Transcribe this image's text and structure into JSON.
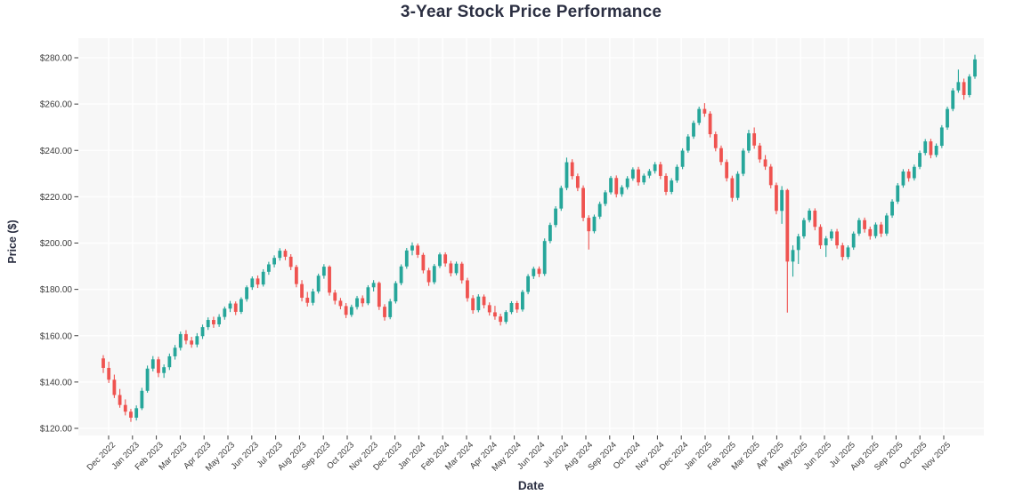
{
  "title": "3-Year Stock Price Performance",
  "x_axis": {
    "label": "Date",
    "ticks": [
      "Dec 2022",
      "Jan 2023",
      "Feb 2023",
      "Mar 2023",
      "Apr 2023",
      "May 2023",
      "Jun 2023",
      "Jul 2023",
      "Aug 2023",
      "Sep 2023",
      "Oct 2023",
      "Nov 2023",
      "Dec 2023",
      "Jan 2024",
      "Feb 2024",
      "Mar 2024",
      "Apr 2024",
      "May 2024",
      "Jun 2024",
      "Jul 2024",
      "Aug 2024",
      "Sep 2024",
      "Oct 2024",
      "Nov 2024",
      "Dec 2024",
      "Jan 2025",
      "Feb 2025",
      "Mar 2025",
      "Apr 2025",
      "May 2025",
      "Jun 2025",
      "Jul 2025",
      "Aug 2025",
      "Sep 2025",
      "Oct 2025",
      "Nov 2025"
    ]
  },
  "y_axis": {
    "label": "Price ($)",
    "tick_labels": [
      "$120.00",
      "$140.00",
      "$160.00",
      "$180.00",
      "$200.00",
      "$220.00",
      "$240.00",
      "$260.00",
      "$280.00"
    ],
    "tick_values": [
      120,
      140,
      160,
      180,
      200,
      220,
      240,
      260,
      280
    ]
  },
  "colors": {
    "up": "#26a69a",
    "down": "#ef5350",
    "plot_background": "#f7f7f7",
    "grid": "#ffffff",
    "tick_text": "#3a3a3a",
    "title_text": "#2b2f42"
  },
  "chart_data": {
    "type": "candlestick",
    "title": "3-Year Stock Price Performance",
    "xlabel": "Date",
    "ylabel": "Price ($)",
    "x_range_labels": [
      "Dec 2022",
      "Nov 2025"
    ],
    "ylim": [
      117,
      288
    ],
    "grid": true,
    "legend": false,
    "frequency": "weekly",
    "n_points": 159,
    "ohlc_format": [
      "open",
      "high",
      "low",
      "close"
    ],
    "ohlc": [
      [
        150.2,
        151.6,
        143.9,
        146.1
      ],
      [
        146.1,
        148.8,
        139.6,
        141.0
      ],
      [
        141.0,
        143.2,
        133.1,
        134.4
      ],
      [
        134.4,
        137.0,
        128.9,
        130.1
      ],
      [
        130.1,
        132.5,
        125.6,
        127.2
      ],
      [
        127.2,
        128.4,
        122.8,
        124.6
      ],
      [
        124.6,
        129.9,
        123.4,
        128.7
      ],
      [
        128.7,
        137.5,
        127.9,
        136.2
      ],
      [
        136.2,
        147.1,
        135.4,
        145.8
      ],
      [
        145.8,
        151.2,
        144.6,
        149.8
      ],
      [
        149.8,
        150.9,
        142.1,
        143.9
      ],
      [
        143.9,
        147.6,
        141.8,
        146.4
      ],
      [
        146.4,
        152.3,
        145.2,
        151.1
      ],
      [
        151.1,
        156.0,
        149.7,
        154.8
      ],
      [
        154.8,
        161.8,
        153.6,
        160.7
      ],
      [
        160.7,
        162.4,
        156.3,
        157.9
      ],
      [
        157.9,
        159.5,
        154.8,
        156.2
      ],
      [
        156.2,
        161.1,
        155.0,
        159.8
      ],
      [
        159.8,
        164.8,
        158.6,
        163.7
      ],
      [
        163.7,
        167.9,
        162.5,
        166.8
      ],
      [
        166.8,
        168.2,
        163.4,
        164.9
      ],
      [
        164.9,
        169.3,
        163.8,
        168.1
      ],
      [
        168.1,
        172.6,
        166.9,
        171.7
      ],
      [
        171.7,
        175.0,
        170.2,
        173.9
      ],
      [
        173.9,
        174.8,
        168.9,
        170.3
      ],
      [
        170.3,
        176.6,
        169.4,
        175.8
      ],
      [
        175.8,
        181.7,
        174.7,
        180.9
      ],
      [
        180.9,
        185.6,
        179.8,
        184.7
      ],
      [
        184.7,
        186.0,
        180.6,
        182.1
      ],
      [
        182.1,
        188.7,
        181.2,
        187.6
      ],
      [
        187.6,
        191.9,
        186.3,
        190.8
      ],
      [
        190.8,
        194.7,
        189.5,
        193.6
      ],
      [
        193.6,
        197.8,
        192.4,
        196.7
      ],
      [
        196.7,
        197.5,
        192.6,
        194.1
      ],
      [
        194.1,
        195.2,
        188.3,
        189.7
      ],
      [
        189.7,
        190.6,
        180.9,
        182.3
      ],
      [
        182.3,
        184.0,
        174.8,
        176.4
      ],
      [
        176.4,
        178.9,
        172.6,
        174.2
      ],
      [
        174.2,
        180.3,
        173.1,
        179.1
      ],
      [
        179.1,
        186.8,
        178.2,
        185.9
      ],
      [
        185.9,
        190.9,
        184.6,
        189.8
      ],
      [
        189.8,
        190.4,
        177.3,
        178.6
      ],
      [
        178.6,
        179.8,
        173.5,
        175.1
      ],
      [
        175.1,
        176.3,
        171.4,
        172.8
      ],
      [
        172.8,
        174.1,
        167.6,
        169.0
      ],
      [
        169.0,
        173.4,
        168.1,
        172.4
      ],
      [
        172.4,
        177.2,
        171.3,
        176.2
      ],
      [
        176.2,
        177.4,
        172.5,
        174.0
      ],
      [
        174.0,
        181.8,
        173.2,
        180.9
      ],
      [
        180.9,
        184.0,
        179.1,
        182.8
      ],
      [
        182.8,
        183.4,
        171.1,
        172.5
      ],
      [
        172.5,
        173.6,
        166.5,
        168.0
      ],
      [
        168.0,
        175.9,
        167.1,
        174.8
      ],
      [
        174.8,
        183.6,
        173.9,
        182.7
      ],
      [
        182.7,
        190.8,
        181.8,
        189.9
      ],
      [
        189.9,
        197.9,
        188.9,
        196.8
      ],
      [
        196.8,
        200.3,
        194.7,
        198.9
      ],
      [
        198.9,
        199.8,
        193.6,
        194.9
      ],
      [
        194.9,
        195.8,
        186.9,
        188.2
      ],
      [
        188.2,
        189.3,
        181.5,
        183.1
      ],
      [
        183.1,
        191.0,
        182.2,
        190.1
      ],
      [
        190.1,
        195.9,
        189.2,
        195.1
      ],
      [
        195.1,
        196.0,
        189.8,
        191.2
      ],
      [
        191.2,
        192.3,
        185.6,
        187.0
      ],
      [
        187.0,
        192.0,
        186.1,
        191.1
      ],
      [
        191.1,
        191.9,
        182.5,
        183.9
      ],
      [
        183.9,
        185.0,
        174.7,
        176.2
      ],
      [
        176.2,
        177.5,
        169.5,
        171.0
      ],
      [
        171.0,
        177.9,
        170.1,
        176.9
      ],
      [
        176.9,
        177.8,
        171.8,
        173.2
      ],
      [
        173.2,
        174.4,
        168.7,
        170.1
      ],
      [
        170.1,
        172.9,
        166.9,
        168.3
      ],
      [
        168.3,
        169.5,
        164.4,
        166.0
      ],
      [
        166.0,
        171.0,
        165.1,
        170.2
      ],
      [
        170.2,
        174.9,
        169.3,
        174.1
      ],
      [
        174.1,
        175.0,
        169.9,
        171.3
      ],
      [
        171.3,
        179.8,
        170.4,
        178.9
      ],
      [
        178.9,
        186.6,
        177.9,
        185.7
      ],
      [
        185.7,
        189.8,
        184.5,
        188.9
      ],
      [
        188.9,
        189.9,
        185.3,
        186.7
      ],
      [
        186.7,
        202.0,
        185.8,
        200.9
      ],
      [
        200.9,
        208.8,
        199.9,
        207.8
      ],
      [
        207.8,
        215.9,
        206.8,
        214.9
      ],
      [
        214.9,
        224.8,
        213.9,
        223.8
      ],
      [
        223.8,
        236.9,
        222.8,
        234.9
      ],
      [
        234.9,
        236.2,
        227.5,
        228.9
      ],
      [
        228.9,
        230.0,
        222.4,
        223.8
      ],
      [
        223.8,
        224.9,
        209.4,
        210.9
      ],
      [
        210.9,
        212.0,
        197.2,
        205.1
      ],
      [
        205.1,
        212.3,
        204.2,
        211.4
      ],
      [
        211.4,
        217.9,
        210.4,
        216.9
      ],
      [
        216.9,
        222.8,
        215.9,
        221.9
      ],
      [
        221.9,
        229.0,
        221.0,
        228.1
      ],
      [
        228.1,
        229.2,
        219.7,
        221.1
      ],
      [
        221.1,
        225.0,
        220.0,
        224.1
      ],
      [
        224.1,
        228.9,
        223.1,
        227.9
      ],
      [
        227.9,
        232.7,
        226.9,
        231.8
      ],
      [
        231.8,
        232.9,
        224.8,
        226.2
      ],
      [
        226.2,
        230.0,
        225.2,
        229.1
      ],
      [
        229.1,
        232.0,
        228.0,
        231.1
      ],
      [
        231.1,
        235.0,
        230.0,
        234.0
      ],
      [
        234.0,
        235.1,
        227.6,
        229.0
      ],
      [
        229.0,
        230.1,
        220.7,
        222.1
      ],
      [
        222.1,
        228.0,
        221.1,
        227.0
      ],
      [
        227.0,
        233.9,
        226.0,
        232.9
      ],
      [
        232.9,
        240.9,
        231.9,
        239.9
      ],
      [
        239.9,
        247.0,
        239.0,
        246.0
      ],
      [
        246.0,
        252.9,
        245.0,
        251.9
      ],
      [
        251.9,
        258.9,
        250.9,
        257.9
      ],
      [
        257.9,
        260.4,
        254.5,
        255.9
      ],
      [
        255.9,
        256.9,
        245.6,
        247.0
      ],
      [
        247.0,
        248.1,
        239.6,
        241.0
      ],
      [
        241.0,
        242.1,
        233.6,
        235.0
      ],
      [
        235.0,
        236.1,
        226.6,
        228.0
      ],
      [
        228.0,
        229.1,
        217.9,
        219.5
      ],
      [
        219.5,
        231.0,
        218.5,
        229.9
      ],
      [
        229.9,
        240.9,
        228.9,
        239.9
      ],
      [
        239.9,
        248.9,
        238.9,
        247.4
      ],
      [
        247.4,
        249.9,
        240.7,
        242.1
      ],
      [
        242.1,
        243.2,
        234.7,
        236.1
      ],
      [
        236.1,
        238.0,
        231.6,
        233.0
      ],
      [
        233.0,
        234.1,
        223.6,
        225.0
      ],
      [
        225.0,
        226.1,
        212.4,
        213.9
      ],
      [
        213.9,
        224.6,
        208.3,
        222.9
      ],
      [
        222.9,
        223.4,
        170.0,
        192.0
      ],
      [
        192.0,
        199.0,
        185.5,
        197.0
      ],
      [
        197.0,
        204.0,
        191.0,
        202.9
      ],
      [
        202.9,
        210.9,
        201.9,
        209.9
      ],
      [
        209.9,
        215.0,
        208.9,
        214.0
      ],
      [
        214.0,
        215.0,
        205.5,
        207.0
      ],
      [
        207.0,
        208.1,
        197.5,
        199.0
      ],
      [
        199.0,
        203.0,
        194.0,
        202.0
      ],
      [
        202.0,
        206.0,
        201.0,
        205.0
      ],
      [
        205.0,
        206.1,
        197.6,
        199.0
      ],
      [
        199.0,
        200.1,
        192.5,
        194.0
      ],
      [
        194.0,
        199.0,
        193.0,
        198.1
      ],
      [
        198.1,
        205.0,
        197.1,
        204.1
      ],
      [
        204.1,
        210.9,
        203.1,
        209.9
      ],
      [
        209.9,
        211.0,
        204.5,
        206.0
      ],
      [
        206.0,
        207.1,
        201.5,
        203.0
      ],
      [
        203.0,
        208.9,
        202.0,
        208.0
      ],
      [
        208.0,
        209.1,
        202.6,
        204.1
      ],
      [
        204.1,
        212.9,
        203.1,
        211.9
      ],
      [
        211.9,
        218.9,
        210.9,
        217.9
      ],
      [
        217.9,
        225.9,
        216.9,
        224.9
      ],
      [
        224.9,
        231.9,
        223.9,
        230.9
      ],
      [
        230.9,
        232.0,
        226.5,
        228.0
      ],
      [
        228.0,
        233.9,
        227.0,
        232.9
      ],
      [
        232.9,
        239.9,
        231.9,
        238.9
      ],
      [
        238.9,
        244.9,
        237.9,
        243.9
      ],
      [
        243.9,
        245.0,
        236.6,
        238.0
      ],
      [
        238.0,
        243.0,
        237.0,
        242.0
      ],
      [
        242.0,
        250.9,
        241.0,
        249.9
      ],
      [
        249.9,
        258.9,
        248.9,
        257.9
      ],
      [
        257.9,
        266.9,
        256.9,
        265.9
      ],
      [
        265.9,
        274.9,
        264.9,
        269.5
      ],
      [
        269.5,
        271.0,
        261.9,
        263.9
      ],
      [
        263.9,
        272.9,
        262.9,
        271.9
      ],
      [
        271.9,
        281.3,
        270.9,
        279.3
      ]
    ]
  }
}
